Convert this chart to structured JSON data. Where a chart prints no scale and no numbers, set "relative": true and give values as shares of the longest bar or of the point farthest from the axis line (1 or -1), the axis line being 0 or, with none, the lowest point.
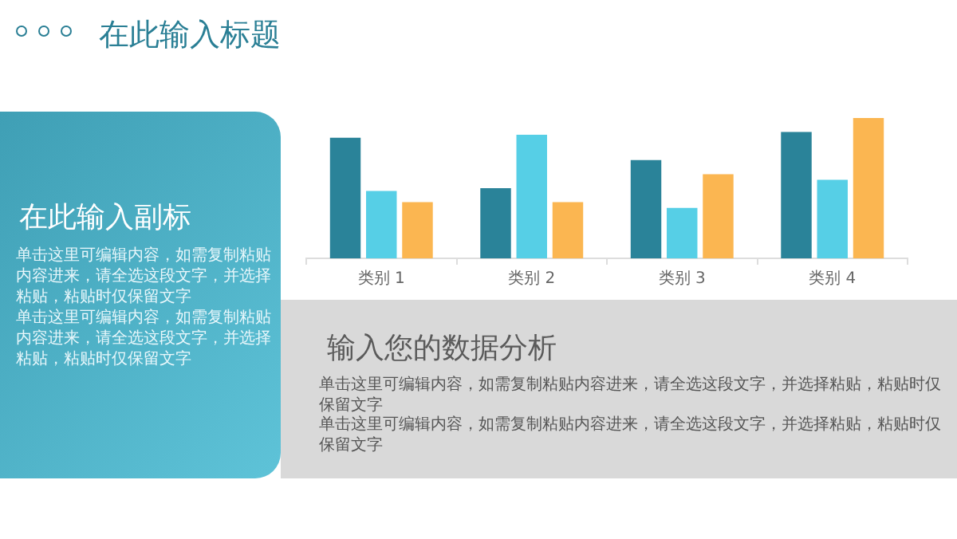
{
  "chart_data": {
    "type": "bar",
    "title": "在此输入标题",
    "subtitle": "在此输入副标",
    "categories": [
      "类别 1",
      "类别 2",
      "类别 3",
      "类别 4"
    ],
    "series": [
      {
        "color": "#2a8399",
        "values": [
          0.86,
          0.5,
          0.7,
          0.9
        ]
      },
      {
        "color": "#56cfe6",
        "values": [
          0.48,
          0.88,
          0.36,
          0.56
        ]
      },
      {
        "color": "#fbb651",
        "values": [
          0.4,
          0.4,
          0.6,
          1
        ]
      }
    ],
    "relative": true,
    "grid": false,
    "legend": false,
    "annotations": [
      "单击这里可编辑内容，如需复制粘贴内容进来，请全选这段文字，并选择粘贴，粘贴时仅保留文字",
      "单击这里可编辑内容，如需复制粘贴内容进来，请全选这段文字，并选择粘贴，粘贴时仅保留文字",
      "输入您的数据分析",
      "单击这里可编辑内容，如需复制粘贴内容进来，请全选这段文字，并选择粘贴，粘贴时仅保留文字",
      "单击这里可编辑内容，如需复制粘贴内容进来，请全选这段文字，并选择粘贴，粘贴时仅保留文字"
    ]
  }
}
